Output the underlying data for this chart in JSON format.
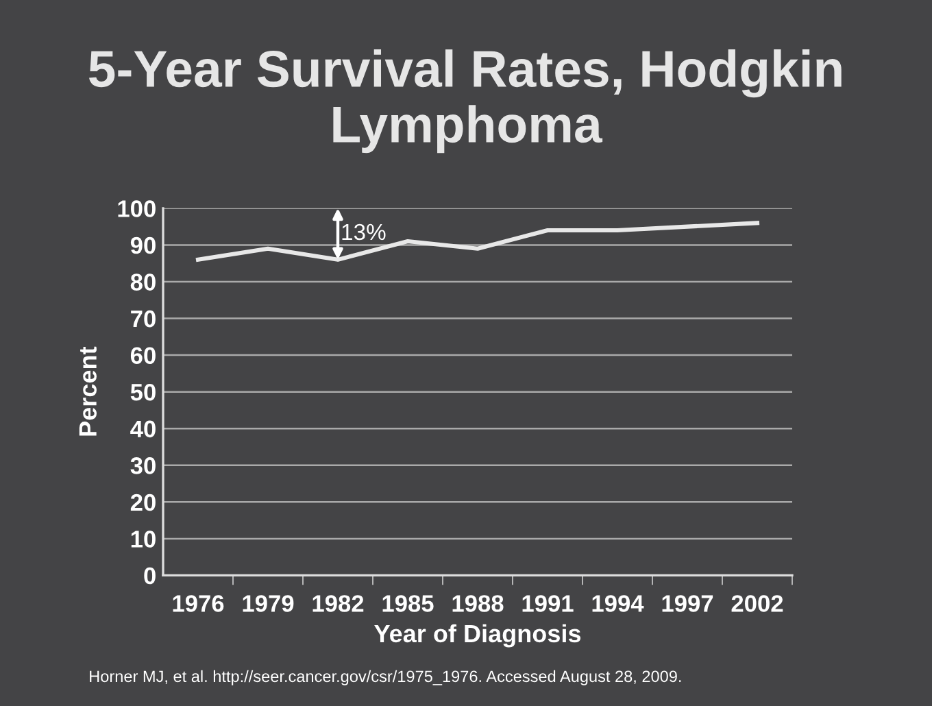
{
  "chart_data": {
    "type": "line",
    "title": "5-Year Survival Rates, Hodgkin Lymphoma",
    "xlabel": "Year of Diagnosis",
    "ylabel": "Percent",
    "categories": [
      "1976",
      "1979",
      "1982",
      "1985",
      "1988",
      "1991",
      "1994",
      "1997",
      "2002"
    ],
    "series": [
      {
        "color": "#e8e8e8",
        "values": [
          86,
          89,
          86,
          91,
          89,
          94,
          94,
          95,
          96
        ]
      }
    ],
    "ylim": [
      0,
      100
    ],
    "yticks": [
      0,
      10,
      20,
      30,
      40,
      50,
      60,
      70,
      80,
      90,
      100
    ],
    "grid": "y",
    "marker": "none",
    "line_style": "solid",
    "legend": false,
    "annotations": [
      {
        "text": "13%",
        "x": "1982",
        "y": 86
      },
      "Horner MJ, et al. http://seer.cancer.gov/csr/1975_1976. Accessed August 28, 2009."
    ]
  }
}
